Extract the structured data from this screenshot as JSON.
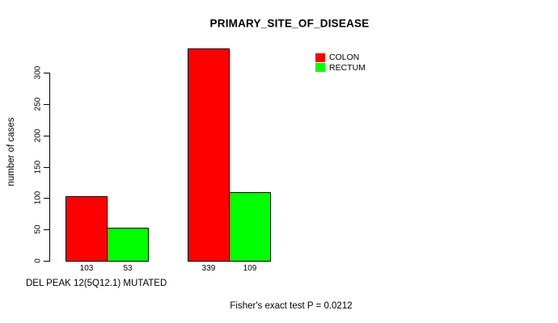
{
  "figure": {
    "background": "#FFFFFF"
  },
  "chart_data": {
    "type": "bar",
    "title": "PRIMARY_SITE_OF_DISEASE",
    "ylabel": "number of cases",
    "xlabel": "DEL PEAK 12(5Q12.1) MUTATED",
    "annotation": "Fisher's exact test P = 0.0212",
    "series": [
      {
        "name": "COLON",
        "color": "#FF0000",
        "values": [
          103,
          339
        ]
      },
      {
        "name": "RECTUM",
        "color": "#00FF00",
        "values": [
          53,
          109
        ]
      }
    ],
    "bar_value_labels": [
      [
        "103",
        "53"
      ],
      [
        "339",
        "109"
      ]
    ],
    "yticks": [
      0,
      50,
      100,
      150,
      200,
      250,
      300
    ],
    "ylim": [
      0,
      339
    ],
    "grid": false,
    "legend_position": "top-right",
    "legend": [
      {
        "label": "COLON",
        "color": "#FF0000"
      },
      {
        "label": "RECTUM",
        "color": "#00FF00"
      }
    ]
  }
}
